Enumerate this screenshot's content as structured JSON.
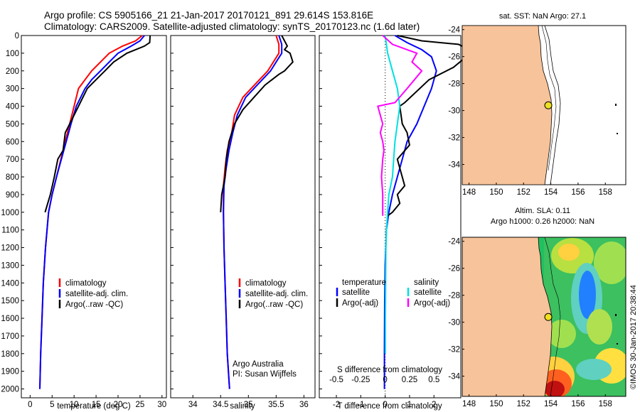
{
  "header": {
    "line1": "Argo profile: CS 5905166_21 21-Jan-2017 20170121_891 29.614S 153.816E",
    "line2": "Climatology: CARS2009. Satellite-adjusted climatology: synTS_20170123.nc (1.6d later)"
  },
  "colors": {
    "climatology": "#ff0000",
    "satellite": "#0000ff",
    "argo": "#000000",
    "sat_salinity": "#00e0e0",
    "argo_salinity": "#ff00ff",
    "land": "#f7c39a"
  },
  "chart_data": [
    {
      "type": "line",
      "name": "temperature-panel",
      "xlabel": "temperature (deg C)",
      "ylabel": "",
      "xlim": [
        -2,
        31
      ],
      "ylim": [
        2050,
        0
      ],
      "xticks": [
        0,
        5,
        10,
        15,
        20,
        25,
        30
      ],
      "yticks": [
        0,
        100,
        200,
        300,
        400,
        500,
        600,
        700,
        800,
        900,
        1000,
        1100,
        1200,
        1300,
        1400,
        1500,
        1600,
        1700,
        1800,
        1900,
        2000
      ],
      "legend": [
        "climatology",
        "satellite-adj. clim.",
        "Argo(..raw -QC)"
      ],
      "series": [
        {
          "name": "climatology",
          "x": [
            25.5,
            24,
            21,
            18,
            16,
            14,
            12.5,
            11,
            10,
            9,
            8,
            7,
            6,
            5,
            4.2,
            3.5,
            3,
            2.7,
            2.4,
            2.2
          ],
          "y": [
            0,
            30,
            60,
            100,
            150,
            200,
            250,
            300,
            400,
            500,
            600,
            700,
            800,
            900,
            1000,
            1200,
            1400,
            1600,
            1800,
            2000
          ]
        },
        {
          "name": "satellite-adj. clim.",
          "x": [
            26,
            25,
            23,
            20,
            18,
            16,
            14,
            12.5,
            10.5,
            9.3,
            8.2,
            7.1,
            6,
            5,
            4.2,
            3.5,
            3,
            2.7,
            2.4,
            2.2
          ],
          "y": [
            0,
            30,
            60,
            100,
            150,
            200,
            250,
            300,
            400,
            500,
            600,
            700,
            800,
            900,
            1000,
            1200,
            1400,
            1600,
            1800,
            2000
          ]
        },
        {
          "name": "Argo(..raw -QC)",
          "x": [
            27.3,
            27.2,
            26,
            24,
            22,
            19,
            17,
            15,
            13,
            11,
            10,
            9,
            8,
            7.5,
            6.3,
            5.5,
            4.6,
            4,
            3.4
          ],
          "y": [
            0,
            40,
            60,
            80,
            100,
            150,
            200,
            250,
            300,
            400,
            450,
            500,
            550,
            650,
            700,
            800,
            900,
            950,
            1000
          ]
        }
      ]
    },
    {
      "type": "line",
      "name": "salinity-panel",
      "xlabel": "salinity",
      "ylabel": "",
      "xlim": [
        33.6,
        36.2
      ],
      "ylim": [
        2050,
        0
      ],
      "xticks": [
        34,
        34.5,
        35,
        35.5,
        36
      ],
      "legend": [
        "climatology",
        "satellite-adj. clim.",
        "Argo(..raw -QC)"
      ],
      "annotation": [
        "Argo Australia",
        "PI: Susan Wijffels"
      ],
      "series": [
        {
          "name": "climatology",
          "x": [
            35.5,
            35.55,
            35.55,
            35.45,
            35.35,
            35.2,
            35.05,
            34.9,
            34.75,
            34.7,
            34.62,
            34.58,
            34.55,
            34.55,
            34.56,
            34.58,
            34.6,
            34.62,
            34.64,
            34.66
          ],
          "y": [
            0,
            50,
            100,
            150,
            200,
            250,
            300,
            350,
            450,
            550,
            650,
            750,
            850,
            1000,
            1200,
            1400,
            1600,
            1800,
            1900,
            2000
          ]
        },
        {
          "name": "satellite-adj. clim.",
          "x": [
            35.55,
            35.6,
            35.6,
            35.5,
            35.4,
            35.25,
            35.1,
            34.95,
            34.8,
            34.72,
            34.65,
            34.6,
            34.56,
            34.55,
            34.56,
            34.58,
            34.6,
            34.62,
            34.64,
            34.66
          ],
          "y": [
            0,
            50,
            100,
            150,
            200,
            250,
            300,
            350,
            450,
            550,
            650,
            750,
            850,
            1000,
            1200,
            1400,
            1600,
            1800,
            1900,
            2000
          ]
        },
        {
          "name": "Argo(..raw -QC)",
          "x": [
            35.6,
            35.7,
            35.65,
            35.75,
            35.8,
            35.65,
            35.55,
            35.3,
            35.1,
            34.9,
            34.75,
            34.65,
            34.6,
            34.58,
            34.55,
            34.52,
            34.5
          ],
          "y": [
            0,
            60,
            80,
            100,
            150,
            200,
            220,
            280,
            350,
            420,
            500,
            600,
            700,
            800,
            850,
            900,
            1000
          ]
        }
      ]
    },
    {
      "type": "line",
      "name": "difference-panel",
      "xlabel": "T difference from climatology",
      "xlabel_top": "S difference from climatology",
      "xlim": [
        -2.7,
        3.1
      ],
      "ylim": [
        2050,
        0
      ],
      "xticks": [
        -2,
        -1,
        0,
        1,
        2
      ],
      "xticks_top": [
        "-0.5",
        "-0.25",
        "0",
        "0.25",
        "0.5"
      ],
      "legend_temperature": [
        "temperature",
        "satellite",
        "Argo(-adj)"
      ],
      "legend_salinity": [
        "salinity",
        "satellite",
        "Argo(-adj)"
      ],
      "series": [
        {
          "name": "temperature satellite",
          "x": [
            0.4,
            0.9,
            1.5,
            1.9,
            2.1,
            1.9,
            1.6,
            1.3,
            0.9,
            0.7,
            0.5,
            0.3,
            0.15,
            0.05,
            0,
            -0.02,
            -0.03,
            -0.03
          ],
          "y": [
            0,
            40,
            80,
            120,
            200,
            300,
            400,
            500,
            600,
            700,
            800,
            900,
            1000,
            1100,
            1300,
            1500,
            1800,
            2000
          ]
        },
        {
          "name": "temperature Argo(-adj)",
          "x": [
            0.5,
            1.5,
            3,
            3.3,
            3.5,
            2.8,
            1.8,
            0.8,
            0.6,
            0.7,
            0.9,
            1.0,
            0.5,
            0.6,
            0.8,
            0.5,
            0.6,
            0.3,
            0.1
          ],
          "y": [
            0,
            30,
            50,
            70,
            100,
            180,
            250,
            380,
            400,
            500,
            550,
            620,
            700,
            750,
            850,
            900,
            950,
            1000,
            1020
          ]
        },
        {
          "name": "salinity satellite",
          "x": [
            0,
            0.1,
            0.3,
            0.5,
            0.6,
            0.5,
            0.4,
            0.35,
            0.3,
            0.15,
            0.1,
            0.05,
            0.03,
            0.02,
            0.01,
            0.01
          ],
          "y": [
            0,
            100,
            200,
            300,
            400,
            500,
            600,
            700,
            800,
            900,
            1000,
            1100,
            1200,
            1400,
            1600,
            1800
          ]
        },
        {
          "name": "salinity Argo(-adj)",
          "x": [
            -0.1,
            0.3,
            1.3,
            1.1,
            1.5,
            0.9,
            0.4,
            -0.3,
            -0.1,
            -0.2,
            -0.1,
            -0.05,
            -0.1,
            -0.15,
            -0.1,
            -0.1
          ],
          "y": [
            0,
            50,
            100,
            150,
            200,
            300,
            380,
            400,
            500,
            550,
            600,
            650,
            700,
            800,
            900,
            1020
          ]
        }
      ]
    },
    {
      "type": "map",
      "name": "sst-map",
      "title": "sat. SST: NaN Argo: 27.1",
      "xlim": [
        147.5,
        159.5
      ],
      "ylim": [
        -35.5,
        -23.7
      ],
      "xticks": [
        148,
        150,
        152,
        154,
        156,
        158
      ],
      "yticks": [
        -24,
        -26,
        -28,
        -30,
        -32,
        -34
      ],
      "argo_position": {
        "lon": 153.816,
        "lat": -29.614
      }
    },
    {
      "type": "heatmap",
      "name": "sla-map",
      "title_line1": "Altim. SLA: 0.11",
      "title_line2": "Argo h1000: 0.26 h2000: NaN",
      "xlim": [
        147.5,
        159.5
      ],
      "ylim": [
        -35.5,
        -23.7
      ],
      "xticks": [
        148,
        150,
        152,
        154,
        156,
        158
      ],
      "yticks": [
        -24,
        -26,
        -28,
        -30,
        -32,
        -34
      ],
      "argo_position": {
        "lon": 153.816,
        "lat": -29.614
      },
      "watermark": "©IMOS 30-Jan-2017 20:38:44"
    }
  ]
}
